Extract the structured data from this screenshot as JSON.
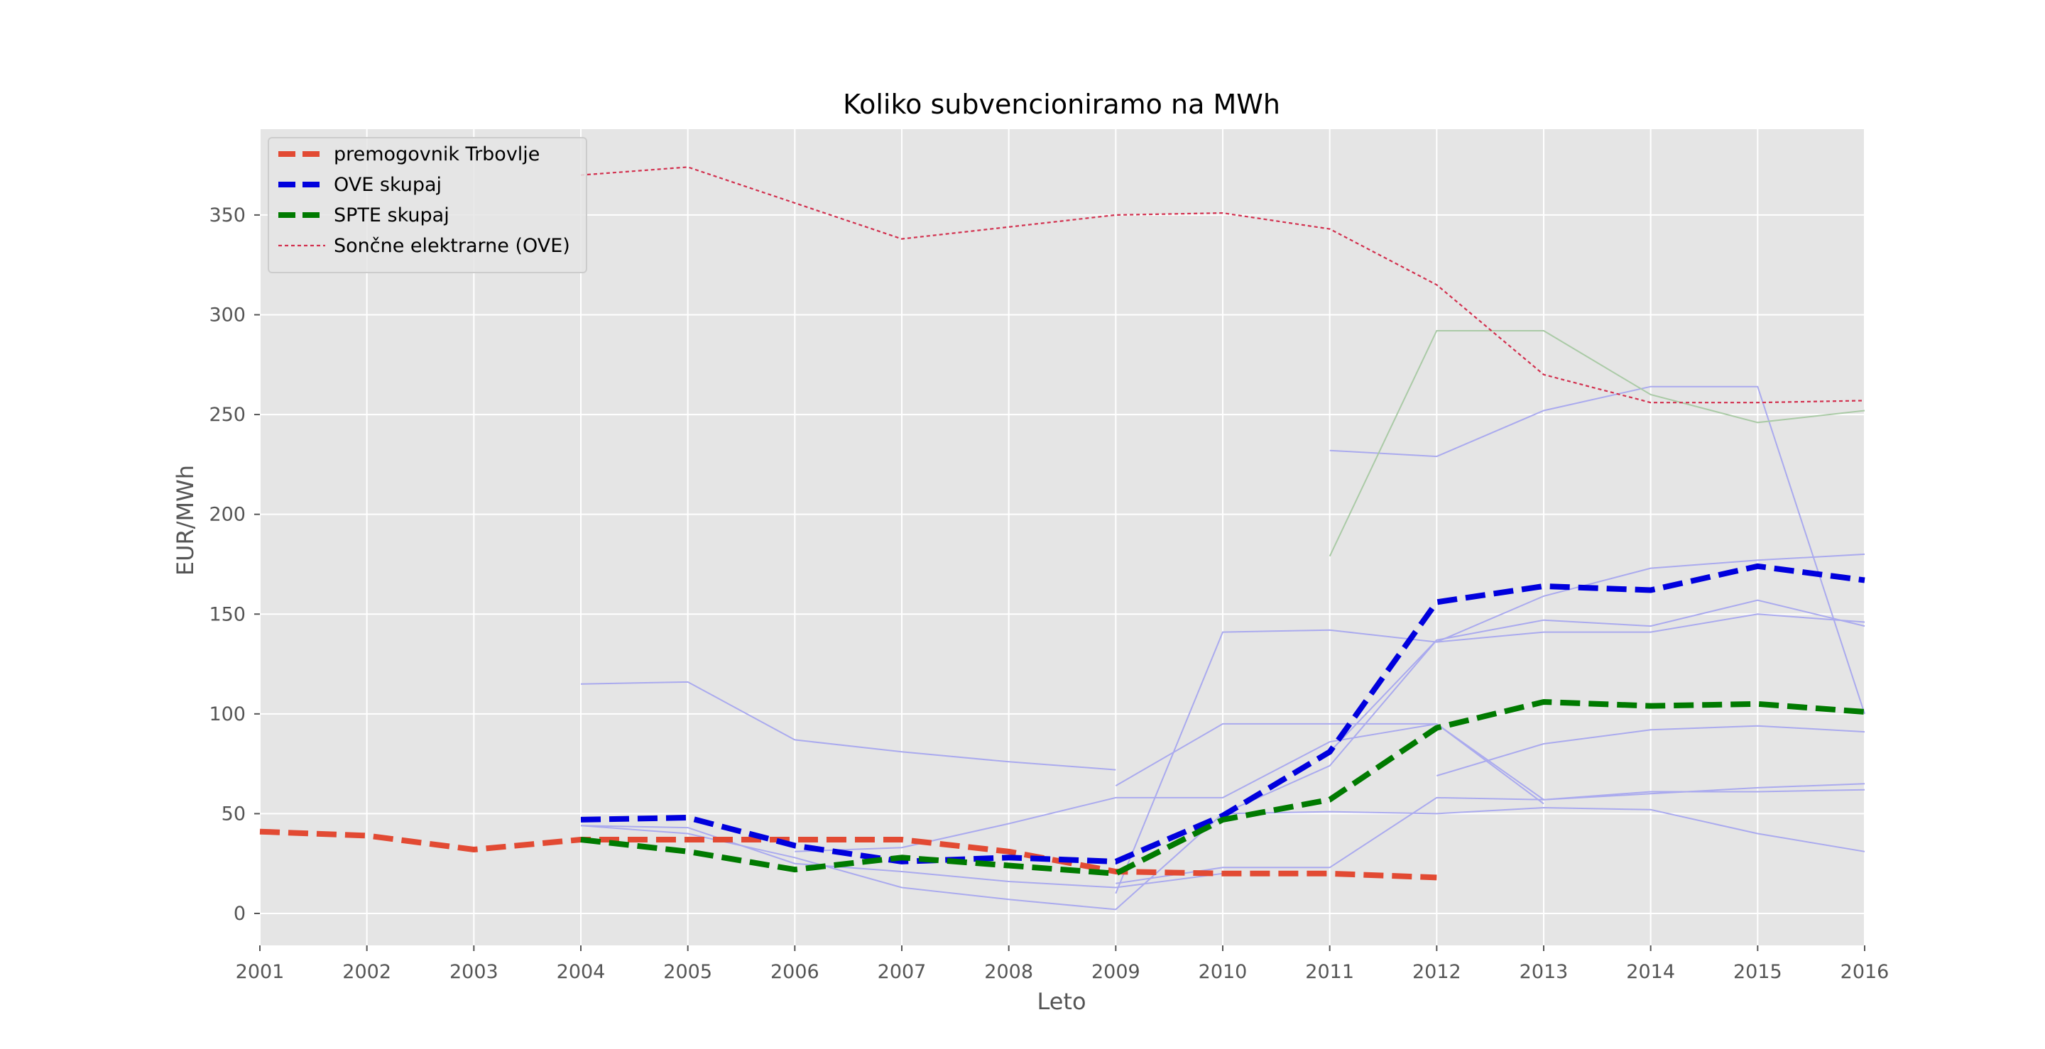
{
  "chart_data": {
    "type": "line",
    "title": "Koliko subvencioniramo na MWh",
    "xlabel": "Leto",
    "ylabel": "EUR/MWh",
    "xlim": [
      2001,
      2016
    ],
    "ylim": [
      -16,
      393
    ],
    "x_ticks": [
      2001,
      2002,
      2003,
      2004,
      2005,
      2006,
      2007,
      2008,
      2009,
      2010,
      2011,
      2012,
      2013,
      2014,
      2015,
      2016
    ],
    "y_ticks": [
      0,
      50,
      100,
      150,
      200,
      250,
      300,
      350
    ],
    "grid": true,
    "legend_position": "top-left",
    "colors": {
      "background": "#e5e5e5",
      "grid": "#ffffff",
      "coal": "#e24a33",
      "ove": "#0000dd",
      "spte": "#007a00",
      "solar": "#d2304e",
      "thin_blue": "#aaaaee",
      "thin_green": "#aacaa6"
    },
    "series": [
      {
        "name": "premogovnik Trbovlje",
        "style": "thick-dashed",
        "color": "#e24a33",
        "x": [
          2001,
          2002,
          2003,
          2004,
          2005,
          2006,
          2007,
          2008,
          2009,
          2010,
          2011,
          2012
        ],
        "y": [
          41,
          39,
          32,
          37,
          37,
          37,
          37,
          31,
          21,
          20,
          20,
          18
        ]
      },
      {
        "name": "OVE skupaj",
        "style": "thick-dashed",
        "color": "#0000dd",
        "x": [
          2004,
          2005,
          2006,
          2007,
          2008,
          2009,
          2010,
          2011,
          2012,
          2013,
          2014,
          2015,
          2016
        ],
        "y": [
          47,
          48,
          34,
          26,
          28,
          26,
          49,
          81,
          156,
          164,
          162,
          174,
          167
        ]
      },
      {
        "name": "SPTE skupaj",
        "style": "thick-dashed",
        "color": "#007a00",
        "x": [
          2004,
          2005,
          2006,
          2007,
          2008,
          2009,
          2010,
          2011,
          2012,
          2013,
          2014,
          2015,
          2016
        ],
        "y": [
          37,
          31,
          22,
          28,
          24,
          20,
          47,
          57,
          93,
          106,
          104,
          105,
          101
        ]
      },
      {
        "name": "Sončne elektrarne (OVE)",
        "style": "thin-dotted",
        "color": "#d2304e",
        "x": [
          2004,
          2005,
          2006,
          2007,
          2008,
          2009,
          2010,
          2011,
          2012,
          2013,
          2014,
          2015,
          2016
        ],
        "y": [
          370,
          374,
          356,
          338,
          344,
          350,
          351,
          343,
          315,
          270,
          256,
          256,
          257
        ]
      }
    ],
    "background_series": [
      {
        "color": "#aaaaee",
        "x": [
          2004,
          2005,
          2006,
          2007,
          2008,
          2009
        ],
        "y": [
          115,
          116,
          87,
          81,
          76,
          72
        ]
      },
      {
        "color": "#aaaaee",
        "x": [
          2004,
          2005,
          2006,
          2007,
          2008,
          2009,
          2010
        ],
        "y": [
          44,
          43,
          25,
          21,
          16,
          13,
          20
        ]
      },
      {
        "color": "#aaaaee",
        "x": [
          2004,
          2005,
          2006,
          2007,
          2008,
          2009,
          2010,
          2011,
          2012
        ],
        "y": [
          44,
          40,
          28,
          13,
          7,
          2,
          50,
          74,
          137
        ]
      },
      {
        "color": "#aaaaee",
        "x": [
          2006,
          2007,
          2008,
          2009,
          2010,
          2011,
          2012,
          2013
        ],
        "y": [
          31,
          33,
          45,
          58,
          58,
          86,
          95,
          55
        ]
      },
      {
        "color": "#aaaaee",
        "x": [
          2009,
          2010,
          2011,
          2012,
          2013,
          2014,
          2015,
          2016
        ],
        "y": [
          64,
          95,
          95,
          95,
          57,
          61,
          61,
          62
        ]
      },
      {
        "color": "#aaaaee",
        "x": [
          2009,
          2010,
          2011,
          2012,
          2013,
          2014,
          2015,
          2016
        ],
        "y": [
          15,
          23,
          23,
          58,
          57,
          60,
          63,
          65
        ]
      },
      {
        "color": "#aaaaee",
        "x": [
          2009,
          2010,
          2011,
          2012,
          2013,
          2014,
          2015,
          2016
        ],
        "y": [
          10,
          141,
          142,
          136,
          141,
          141,
          150,
          146
        ]
      },
      {
        "color": "#aaaaee",
        "x": [
          2011,
          2012,
          2013,
          2014,
          2015,
          2016
        ],
        "y": [
          232,
          229,
          252,
          264,
          264,
          100
        ]
      },
      {
        "color": "#aaaaee",
        "x": [
          2011,
          2012,
          2013,
          2014,
          2015,
          2016
        ],
        "y": [
          81,
          137,
          147,
          144,
          157,
          144
        ]
      },
      {
        "color": "#aaaaee",
        "x": [
          2012,
          2013,
          2014,
          2015,
          2016
        ],
        "y": [
          136,
          159,
          173,
          177,
          180
        ]
      },
      {
        "color": "#aaaaee",
        "x": [
          2012,
          2013,
          2014,
          2015,
          2016
        ],
        "y": [
          69,
          85,
          92,
          94,
          91
        ]
      },
      {
        "color": "#aaaaee",
        "x": [
          2010,
          2011,
          2012,
          2013,
          2014,
          2015,
          2016
        ],
        "y": [
          50,
          51,
          50,
          53,
          52,
          40,
          31
        ]
      },
      {
        "color": "#aacaa6",
        "x": [
          2011,
          2012,
          2013,
          2014,
          2015,
          2016
        ],
        "y": [
          179,
          292,
          292,
          260,
          246,
          252
        ]
      }
    ]
  }
}
